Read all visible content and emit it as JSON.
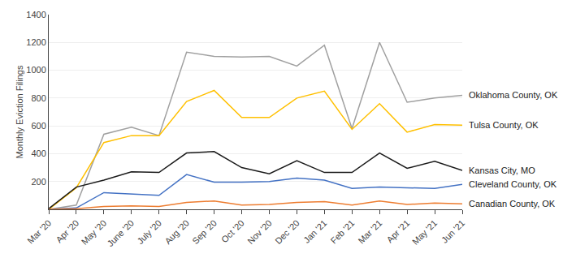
{
  "chart_data": {
    "type": "line",
    "ylabel": "Monthly Eviction Filings",
    "categories": [
      "Mar '20",
      "Apr '20",
      "May '20",
      "June '20",
      "July '20",
      "Aug '20",
      "Sep '20",
      "Oct '20",
      "Nov '20",
      "Dec '20",
      "Jan '21",
      "Feb '21",
      "Mar '21",
      "Apr '21",
      "May '21",
      "Jun '21"
    ],
    "series": [
      {
        "name": "Oklahoma County, OK",
        "color": "#a0a0a0",
        "values": [
          0,
          30,
          540,
          590,
          530,
          1130,
          1100,
          1095,
          1100,
          1030,
          1180,
          580,
          1200,
          770,
          800,
          820
        ]
      },
      {
        "name": "Tulsa County, OK",
        "color": "#FFC000",
        "values": [
          0,
          155,
          480,
          530,
          530,
          775,
          855,
          660,
          660,
          800,
          850,
          575,
          760,
          555,
          610,
          605
        ]
      },
      {
        "name": "Kansas City, MO",
        "color": "#1a1a1a",
        "values": [
          5,
          160,
          210,
          270,
          265,
          405,
          415,
          300,
          255,
          350,
          265,
          265,
          405,
          295,
          345,
          280
        ]
      },
      {
        "name": "Cleveland County, OK",
        "color": "#4472C4",
        "values": [
          0,
          10,
          120,
          110,
          100,
          250,
          195,
          195,
          200,
          225,
          210,
          150,
          160,
          155,
          150,
          180
        ]
      },
      {
        "name": "Canadian County, OK",
        "color": "#ED7D31",
        "values": [
          0,
          5,
          20,
          25,
          20,
          50,
          60,
          30,
          35,
          50,
          55,
          30,
          60,
          35,
          45,
          40
        ]
      }
    ],
    "ylim": [
      0,
      1400
    ],
    "yticks": [
      200,
      400,
      600,
      800,
      1000,
      1200,
      1400
    ],
    "grid": true
  }
}
